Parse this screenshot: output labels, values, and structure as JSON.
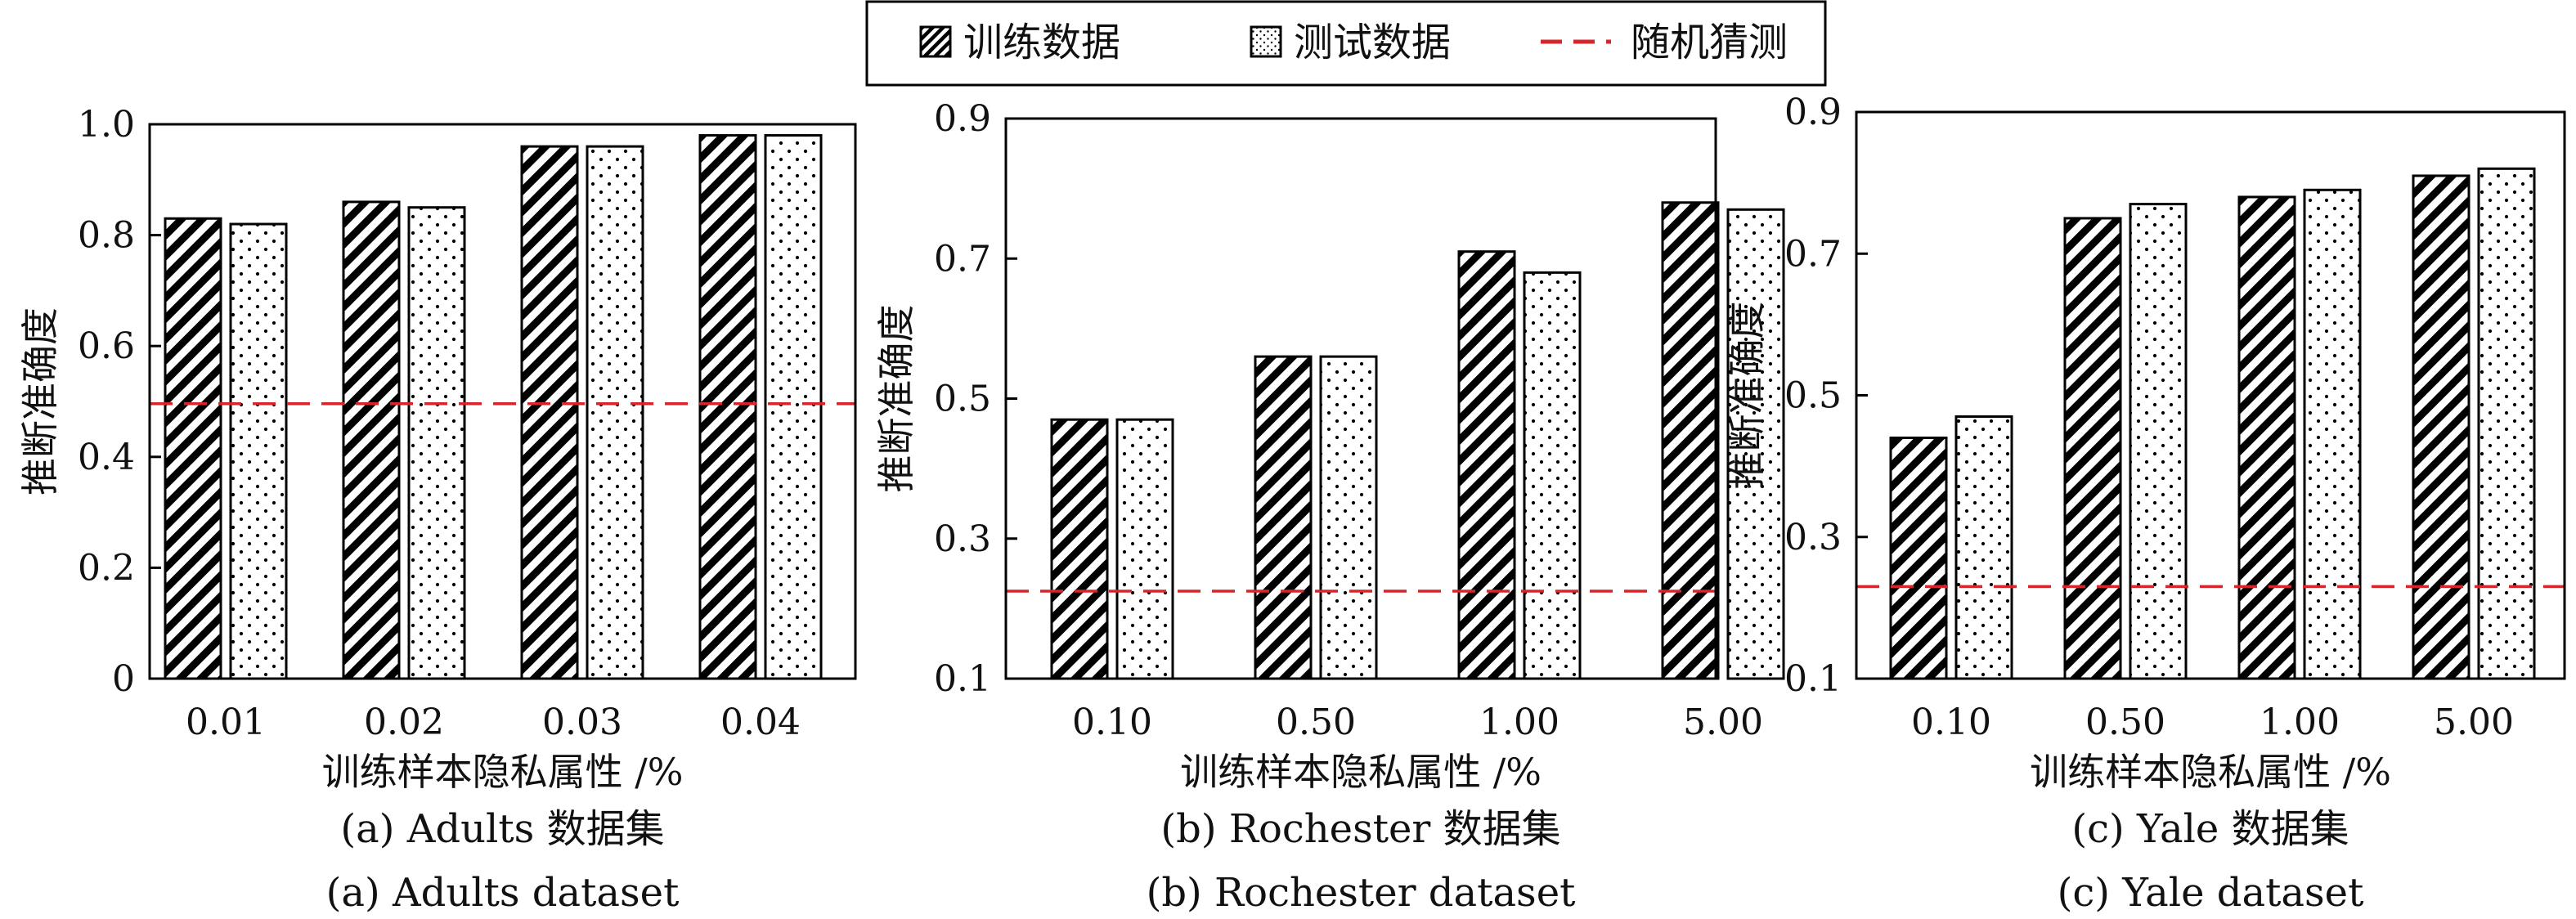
{
  "legend": {
    "train_label": "训练数据",
    "test_label": "测试数据",
    "random_label": "随机猜测"
  },
  "colors": {
    "baseline": "#d7262b",
    "bar_stroke": "#000000"
  },
  "chart_data": [
    {
      "type": "bar",
      "title": "",
      "ylabel": "推断准确度",
      "xlabel": "训练样本隐私属性 /%",
      "caption_cn": "(a) Adults 数据集",
      "caption_en": "(a) Adults dataset",
      "categories": [
        "0.01",
        "0.02",
        "0.03",
        "0.04"
      ],
      "ylim": [
        0,
        1.0
      ],
      "yticks": [
        "0",
        "0.2",
        "0.4",
        "0.6",
        "0.8",
        "1.0"
      ],
      "random_guess": 0.496,
      "series": [
        {
          "name": "训练数据",
          "values": [
            0.83,
            0.86,
            0.96,
            0.98
          ]
        },
        {
          "name": "测试数据",
          "values": [
            0.82,
            0.85,
            0.96,
            0.98
          ]
        }
      ]
    },
    {
      "type": "bar",
      "title": "",
      "ylabel": "推断准确度",
      "xlabel": "训练样本隐私属性 /%",
      "caption_cn": "(b) Rochester 数据集",
      "caption_en": "(b) Rochester dataset",
      "categories": [
        "0.10",
        "0.50",
        "1.00",
        "5.00"
      ],
      "ylim": [
        0.1,
        0.9
      ],
      "yticks": [
        "0.1",
        "0.3",
        "0.5",
        "0.7",
        "0.9"
      ],
      "random_guess": 0.225,
      "series": [
        {
          "name": "训练数据",
          "values": [
            0.47,
            0.56,
            0.71,
            0.78
          ]
        },
        {
          "name": "测试数据",
          "values": [
            0.47,
            0.56,
            0.68,
            0.77
          ]
        }
      ]
    },
    {
      "type": "bar",
      "title": "",
      "ylabel": "推断准确度",
      "xlabel": "训练样本隐私属性 /%",
      "caption_cn": "(c) Yale 数据集",
      "caption_en": "(c) Yale dataset",
      "categories": [
        "0.10",
        "0.50",
        "1.00",
        "5.00"
      ],
      "ylim": [
        0.1,
        0.9
      ],
      "yticks": [
        "0.1",
        "0.3",
        "0.5",
        "0.7",
        "0.9"
      ],
      "random_guess": 0.23,
      "series": [
        {
          "name": "训练数据",
          "values": [
            0.44,
            0.75,
            0.78,
            0.81
          ]
        },
        {
          "name": "测试数据",
          "values": [
            0.47,
            0.77,
            0.79,
            0.82
          ]
        }
      ]
    }
  ]
}
